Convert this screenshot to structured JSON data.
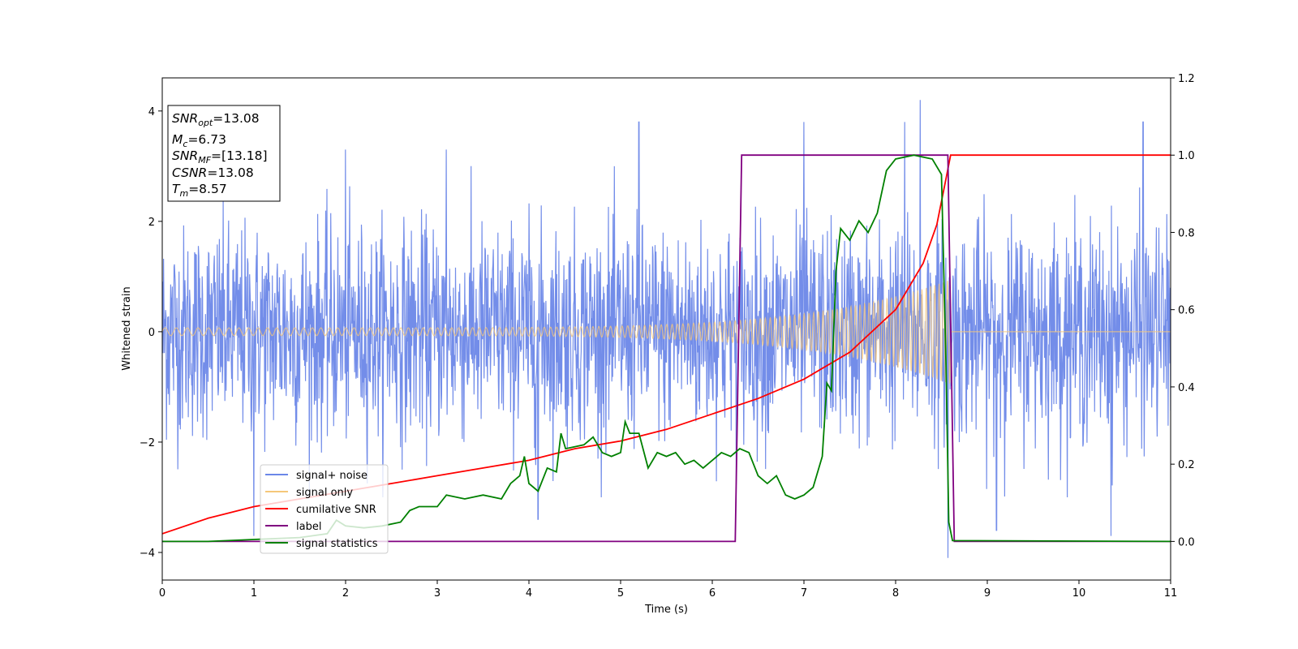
{
  "chart_data": {
    "type": "line",
    "xlabel": "Time (s)",
    "ylabel": "Whitened strain",
    "xlim": [
      0,
      11
    ],
    "ylim_left": [
      -4.5,
      4.6
    ],
    "ylim_right": [
      -0.1,
      1.2
    ],
    "x_ticks": [
      "0",
      "1",
      "2",
      "3",
      "4",
      "5",
      "6",
      "7",
      "8",
      "9",
      "10",
      "11"
    ],
    "y_ticks_left": [
      {
        "value": 4,
        "label": "4"
      },
      {
        "value": 2,
        "label": "2"
      },
      {
        "value": 0,
        "label": "0"
      },
      {
        "value": -2,
        "label": "−2"
      },
      {
        "value": -4,
        "label": "−4"
      }
    ],
    "y_ticks_right": [
      {
        "value": 1.2,
        "label": "1.2"
      },
      {
        "value": 1.0,
        "label": "1.0"
      },
      {
        "value": 0.8,
        "label": "0.8"
      },
      {
        "value": 0.6,
        "label": "0.6"
      },
      {
        "value": 0.4,
        "label": "0.4"
      },
      {
        "value": 0.2,
        "label": "0.2"
      },
      {
        "value": 0.0,
        "label": "0.0"
      }
    ],
    "legend_position": "lower-left",
    "info_box": {
      "snr_opt": {
        "base": "SNR",
        "sub": "opt",
        "value": "=13.08"
      },
      "mc": {
        "base": "M",
        "sub": "c",
        "value": "=6.73"
      },
      "snr_mf": {
        "base": "SNR",
        "sub": "MF",
        "value": "=[13.18]"
      },
      "csnr": {
        "base": "CSNR",
        "value": "=13.08"
      },
      "tm": {
        "base": "T",
        "sub": "m",
        "value": "=8.57"
      }
    },
    "series": [
      {
        "name": "signal+ noise",
        "color": "#6b87e8",
        "axis": "left",
        "description_values": {
          "noise_std": 0.95,
          "spike_extremes": [
            4.2,
            -4.1
          ]
        },
        "spikes": [
          [
            2.0,
            3.3
          ],
          [
            3.1,
            3.3
          ],
          [
            5.2,
            3.8
          ],
          [
            7.0,
            3.8
          ],
          [
            8.27,
            4.2
          ],
          [
            8.1,
            3.8
          ],
          [
            10.7,
            3.8
          ],
          [
            1.0,
            -3.7
          ],
          [
            4.1,
            -3.4
          ],
          [
            8.57,
            -4.1
          ],
          [
            9.1,
            -3.6
          ],
          [
            10.35,
            -3.7
          ]
        ]
      },
      {
        "name": "signal only",
        "color": "#f5c77a",
        "axis": "left",
        "chirp": {
          "start": 0.0,
          "end": 8.6,
          "amp_start": 0.07,
          "amp_end": 0.95
        }
      },
      {
        "name": "cumilative SNR",
        "color": "#ff0000",
        "axis": "right",
        "points": [
          [
            0.0,
            0.02
          ],
          [
            0.5,
            0.06
          ],
          [
            1.0,
            0.09
          ],
          [
            1.5,
            0.11
          ],
          [
            2.0,
            0.13
          ],
          [
            2.5,
            0.15
          ],
          [
            3.0,
            0.17
          ],
          [
            3.5,
            0.19
          ],
          [
            4.0,
            0.21
          ],
          [
            4.5,
            0.24
          ],
          [
            5.0,
            0.26
          ],
          [
            5.5,
            0.29
          ],
          [
            6.0,
            0.33
          ],
          [
            6.5,
            0.37
          ],
          [
            7.0,
            0.42
          ],
          [
            7.5,
            0.49
          ],
          [
            8.0,
            0.6
          ],
          [
            8.3,
            0.72
          ],
          [
            8.45,
            0.82
          ],
          [
            8.55,
            0.94
          ],
          [
            8.6,
            1.0
          ],
          [
            11.0,
            1.0
          ]
        ]
      },
      {
        "name": "label",
        "color": "#800080",
        "axis": "right",
        "points": [
          [
            0.0,
            0.0
          ],
          [
            6.25,
            0.0
          ],
          [
            6.32,
            1.0
          ],
          [
            8.57,
            1.0
          ],
          [
            8.64,
            0.0
          ],
          [
            11.0,
            0.0
          ]
        ]
      },
      {
        "name": "signal statistics",
        "color": "#008000",
        "axis": "right",
        "points": [
          [
            0.0,
            0.0
          ],
          [
            0.5,
            0.0
          ],
          [
            1.0,
            0.005
          ],
          [
            1.5,
            0.01
          ],
          [
            1.8,
            0.02
          ],
          [
            1.9,
            0.055
          ],
          [
            2.0,
            0.04
          ],
          [
            2.2,
            0.035
          ],
          [
            2.4,
            0.04
          ],
          [
            2.6,
            0.05
          ],
          [
            2.7,
            0.08
          ],
          [
            2.8,
            0.09
          ],
          [
            3.0,
            0.09
          ],
          [
            3.1,
            0.12
          ],
          [
            3.3,
            0.11
          ],
          [
            3.5,
            0.12
          ],
          [
            3.7,
            0.11
          ],
          [
            3.8,
            0.15
          ],
          [
            3.9,
            0.17
          ],
          [
            3.95,
            0.22
          ],
          [
            4.0,
            0.15
          ],
          [
            4.1,
            0.13
          ],
          [
            4.2,
            0.19
          ],
          [
            4.3,
            0.18
          ],
          [
            4.35,
            0.28
          ],
          [
            4.4,
            0.24
          ],
          [
            4.6,
            0.25
          ],
          [
            4.7,
            0.27
          ],
          [
            4.8,
            0.23
          ],
          [
            4.9,
            0.22
          ],
          [
            5.0,
            0.23
          ],
          [
            5.05,
            0.31
          ],
          [
            5.1,
            0.28
          ],
          [
            5.2,
            0.28
          ],
          [
            5.3,
            0.19
          ],
          [
            5.4,
            0.23
          ],
          [
            5.5,
            0.22
          ],
          [
            5.6,
            0.23
          ],
          [
            5.7,
            0.2
          ],
          [
            5.8,
            0.21
          ],
          [
            5.9,
            0.19
          ],
          [
            6.0,
            0.21
          ],
          [
            6.1,
            0.23
          ],
          [
            6.2,
            0.22
          ],
          [
            6.3,
            0.24
          ],
          [
            6.4,
            0.23
          ],
          [
            6.5,
            0.17
          ],
          [
            6.6,
            0.15
          ],
          [
            6.7,
            0.17
          ],
          [
            6.8,
            0.12
          ],
          [
            6.9,
            0.11
          ],
          [
            7.0,
            0.12
          ],
          [
            7.1,
            0.14
          ],
          [
            7.2,
            0.22
          ],
          [
            7.25,
            0.41
          ],
          [
            7.3,
            0.39
          ],
          [
            7.35,
            0.7
          ],
          [
            7.4,
            0.81
          ],
          [
            7.5,
            0.78
          ],
          [
            7.6,
            0.83
          ],
          [
            7.7,
            0.8
          ],
          [
            7.8,
            0.85
          ],
          [
            7.9,
            0.96
          ],
          [
            8.0,
            0.99
          ],
          [
            8.2,
            1.0
          ],
          [
            8.4,
            0.99
          ],
          [
            8.5,
            0.95
          ],
          [
            8.55,
            0.45
          ],
          [
            8.58,
            0.05
          ],
          [
            8.62,
            0.002
          ],
          [
            11.0,
            0.0
          ]
        ]
      }
    ]
  }
}
